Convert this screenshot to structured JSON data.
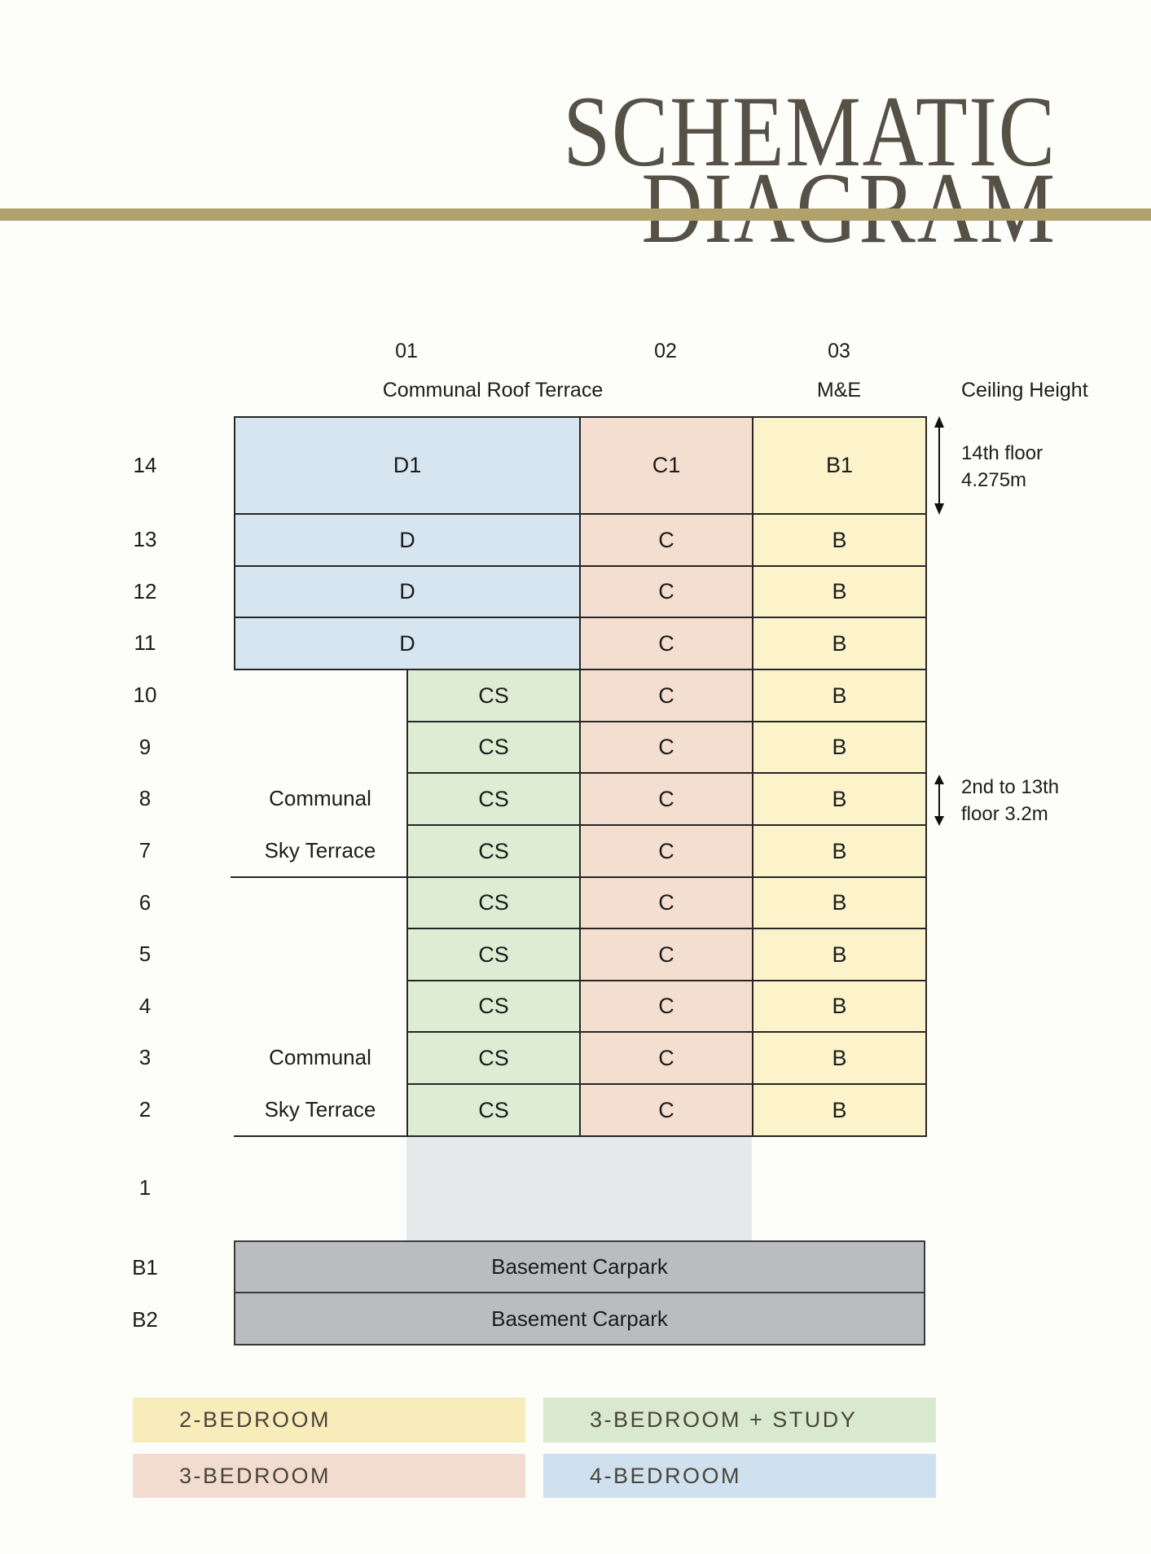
{
  "title": {
    "line1": "SCHEMATIC",
    "line2": "DIAGRAM"
  },
  "diagram": {
    "column_headers": [
      "01",
      "02",
      "03"
    ],
    "roof_label": "Communal Roof Terrace",
    "me_label": "M&E",
    "ceiling_label": "Ceiling Height",
    "floors": [
      {
        "label": "14",
        "cells": [
          "D1",
          "C1",
          "B1"
        ]
      },
      {
        "label": "13",
        "cells": [
          "D",
          "C",
          "B"
        ]
      },
      {
        "label": "12",
        "cells": [
          "D",
          "C",
          "B"
        ]
      },
      {
        "label": "11",
        "cells": [
          "D",
          "C",
          "B"
        ]
      },
      {
        "label": "10",
        "cells": [
          "CS",
          "C",
          "B"
        ]
      },
      {
        "label": "9",
        "cells": [
          "CS",
          "C",
          "B"
        ]
      },
      {
        "label": "8",
        "left": "Communal",
        "cells": [
          "CS",
          "C",
          "B"
        ]
      },
      {
        "label": "7",
        "left": "Sky Terrace",
        "cells": [
          "CS",
          "C",
          "B"
        ]
      },
      {
        "label": "6",
        "cells": [
          "CS",
          "C",
          "B"
        ]
      },
      {
        "label": "5",
        "cells": [
          "CS",
          "C",
          "B"
        ]
      },
      {
        "label": "4",
        "cells": [
          "CS",
          "C",
          "B"
        ]
      },
      {
        "label": "3",
        "left": "Communal",
        "cells": [
          "CS",
          "C",
          "B"
        ]
      },
      {
        "label": "2",
        "left": "Sky Terrace",
        "cells": [
          "CS",
          "C",
          "B"
        ]
      }
    ],
    "ground_floor_label": "1",
    "basements": [
      {
        "label": "B1",
        "text": "Basement Carpark"
      },
      {
        "label": "B2",
        "text": "Basement Carpark"
      }
    ],
    "annotations": [
      {
        "lines": [
          "14th floor",
          "4.275m"
        ]
      },
      {
        "lines": [
          "2nd to 13th",
          "floor 3.2m"
        ]
      }
    ]
  },
  "legend": {
    "items": [
      {
        "label": "2-BEDROOM",
        "key": "legend_yellow"
      },
      {
        "label": "3-BEDROOM + STUDY",
        "key": "legend_green"
      },
      {
        "label": "3-BEDROOM",
        "key": "legend_pink"
      },
      {
        "label": "4-BEDROOM",
        "key": "legend_blue"
      }
    ]
  },
  "colors": {
    "title": "#565147",
    "gold": "#b1a26b",
    "blue": "#d7e5f1",
    "pink": "#f4decf",
    "yellow": "#fcf3cb",
    "green": "#dcedd3",
    "ground": "#e7e8ea",
    "basement": "#bbbcc0",
    "legend_yellow": "#f8ecba",
    "legend_green": "#d8e9d0",
    "legend_pink": "#f2dcd0",
    "legend_blue": "#cfe0ef"
  }
}
